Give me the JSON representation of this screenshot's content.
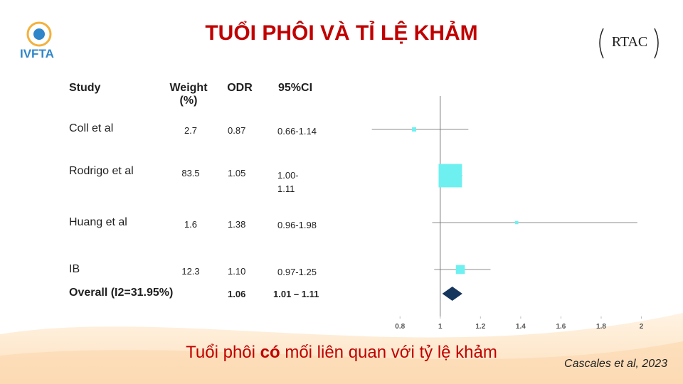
{
  "header": {
    "title": "TUỔI PHÔI VÀ TỈ LỆ KHẢM",
    "logo_left": "IVFTA",
    "logo_right": "RTAC"
  },
  "table": {
    "columns": [
      "Study",
      "Weight (%)",
      "ODR",
      "95%CI"
    ],
    "rows": [
      [
        "Coll et al",
        "2.7",
        "0.87",
        "0.66-1.14"
      ],
      [
        "Rodrigo et al",
        "83.5",
        "1.05",
        "1.00-1.11"
      ],
      [
        "Huang et al",
        "1.6",
        "1.38",
        "0.96-1.98"
      ],
      [
        "IB",
        "12.3",
        "1.10",
        "0.97-1.25"
      ]
    ],
    "overall": [
      "Overall (I2=31.95%)",
      "1.06",
      "1.01 – 1.11"
    ]
  },
  "chart_data": {
    "type": "forest",
    "values": [
      0.87,
      1.05,
      1.38,
      1.1
    ],
    "lower": [
      0.66,
      1.0,
      0.96,
      0.97
    ],
    "upper": [
      1.14,
      1.11,
      1.98,
      1.25
    ],
    "weights": [
      2.7,
      83.5,
      1.6,
      12.3
    ],
    "overall": {
      "value": 1.06,
      "lower": 1.01,
      "upper": 1.11
    },
    "color": "#6ff0f0",
    "overall_color": "#17365d",
    "xlim": [
      0.64,
      2.03
    ],
    "xticks": [
      0.8,
      1,
      1.2,
      1.4,
      1.6,
      1.8,
      2
    ],
    "reference_line": 1
  },
  "conclusion": {
    "before": "Tuổi phôi ",
    "bold": "có",
    "after": " mối liên quan với tỷ lệ khảm"
  },
  "citation": "Cascales et al, 2023"
}
